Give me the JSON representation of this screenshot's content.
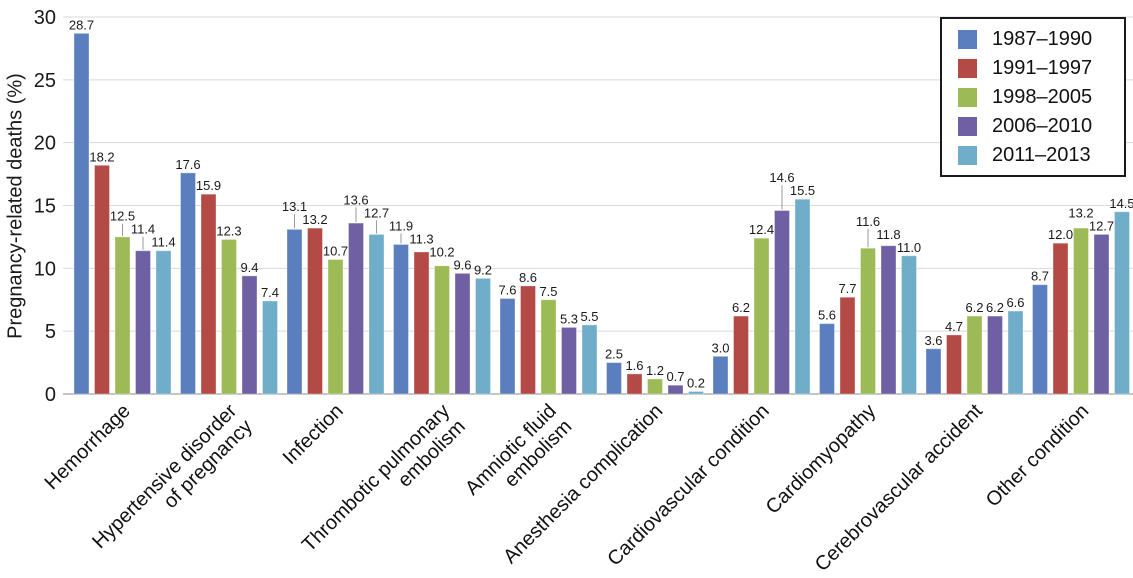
{
  "chart_data": {
    "type": "bar",
    "title": "",
    "xlabel": "",
    "ylabel": "Pregnancy-related deaths (%)",
    "ylim": [
      0,
      30
    ],
    "yticks": [
      0,
      5,
      10,
      15,
      20,
      25,
      30
    ],
    "grid": true,
    "gridline_color": "#d9d9d9",
    "axis_line_color": "#b0b0b0",
    "leader_line_color": "#999999",
    "legend_position": "top-right",
    "value_label_format": "one-decimal",
    "categories": [
      [
        "Hemorrhage"
      ],
      [
        "Hypertensive disorder",
        "of pregnancy"
      ],
      [
        "Infection"
      ],
      [
        "Thrombotic pulmonary",
        "embolism"
      ],
      [
        "Amniotic fluid",
        "embolism"
      ],
      [
        "Anesthesia complication"
      ],
      [
        "Cardiovascular condition"
      ],
      [
        "Cardiomyopathy"
      ],
      [
        "Cerebrovascular accident"
      ],
      [
        "Other condition"
      ]
    ],
    "series": [
      {
        "name": "1987–1990",
        "color": "#5b7fbe",
        "values": [
          28.7,
          17.6,
          13.1,
          11.9,
          7.6,
          2.5,
          3.0,
          5.6,
          3.6,
          8.7
        ]
      },
      {
        "name": "1991–1997",
        "color": "#b34a45",
        "values": [
          18.2,
          15.9,
          13.2,
          11.3,
          8.6,
          1.6,
          6.2,
          7.7,
          4.7,
          12.0
        ]
      },
      {
        "name": "1998–2005",
        "color": "#9cba55",
        "values": [
          12.5,
          12.3,
          10.7,
          10.2,
          7.5,
          1.2,
          12.4,
          11.6,
          6.2,
          13.2
        ]
      },
      {
        "name": "2006–2010",
        "color": "#6f5fa3",
        "values": [
          11.4,
          9.4,
          13.6,
          9.6,
          5.3,
          0.7,
          14.6,
          11.8,
          6.2,
          12.7
        ]
      },
      {
        "name": "2011–2013",
        "color": "#6fadc9",
        "values": [
          11.4,
          7.4,
          12.7,
          9.2,
          5.5,
          0.2,
          15.5,
          11.0,
          6.6,
          14.5
        ]
      }
    ]
  }
}
